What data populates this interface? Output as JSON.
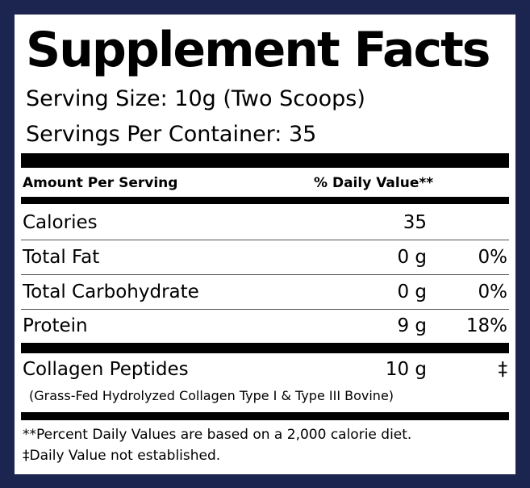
{
  "label": {
    "title": "Supplement Facts",
    "serving_size": "Serving Size: 10g (Two Scoops)",
    "servings_per_container": "Servings Per Container: 35",
    "header": {
      "amount_per_serving": "Amount Per Serving",
      "daily_value": "% Daily Value**"
    },
    "nutrients": [
      {
        "name": "Calories",
        "amount": "35",
        "dv": ""
      },
      {
        "name": "Total Fat",
        "amount": "0 g",
        "dv": "0%"
      },
      {
        "name": "Total Carbohydrate",
        "amount": "0 g",
        "dv": "0%"
      },
      {
        "name": "Protein",
        "amount": "9 g",
        "dv": "18%"
      }
    ],
    "supplement": {
      "name": "Collagen Peptides",
      "amount": "10 g",
      "dv": "‡",
      "note": "(Grass-Fed Hydrolyzed Collagen Type I & Type III Bovine)"
    },
    "footnotes": [
      "**Percent Daily Values are based on a 2,000 calorie diet.",
      "‡Daily Value not established."
    ]
  },
  "colors": {
    "border": "#1b2550",
    "background": "#ffffff",
    "text": "#000000"
  }
}
